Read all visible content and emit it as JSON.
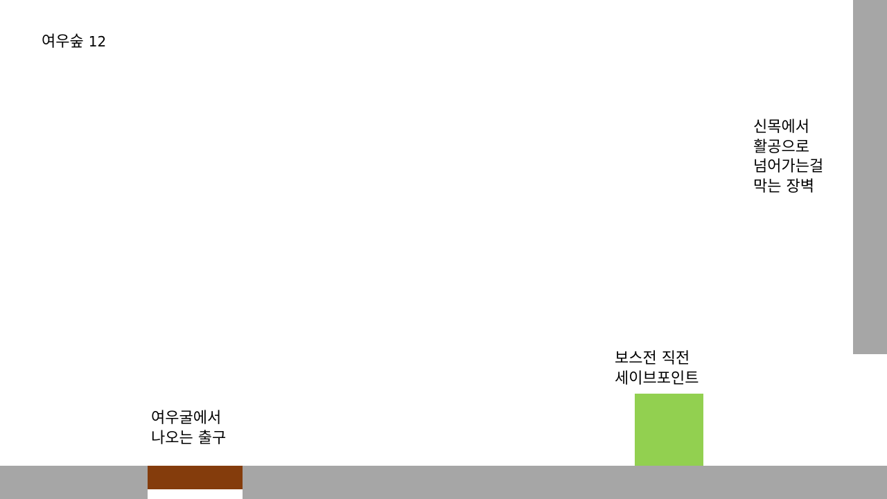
{
  "title": {
    "name": "여우숲",
    "number": "12"
  },
  "notes": {
    "wall": [
      "신목에서",
      "활공으로",
      "넘어가는걸",
      "막는 장벽"
    ],
    "save_point": [
      "보스전 직전",
      "세이브포인트"
    ],
    "cave_exit": [
      "여우굴에서",
      "나오는 출구"
    ]
  },
  "colors": {
    "wall": "#a6a6a6",
    "ground": "#a6a6a6",
    "cave_exit": "#843c0c",
    "save_point": "#92d050",
    "background": "#ffffff"
  }
}
